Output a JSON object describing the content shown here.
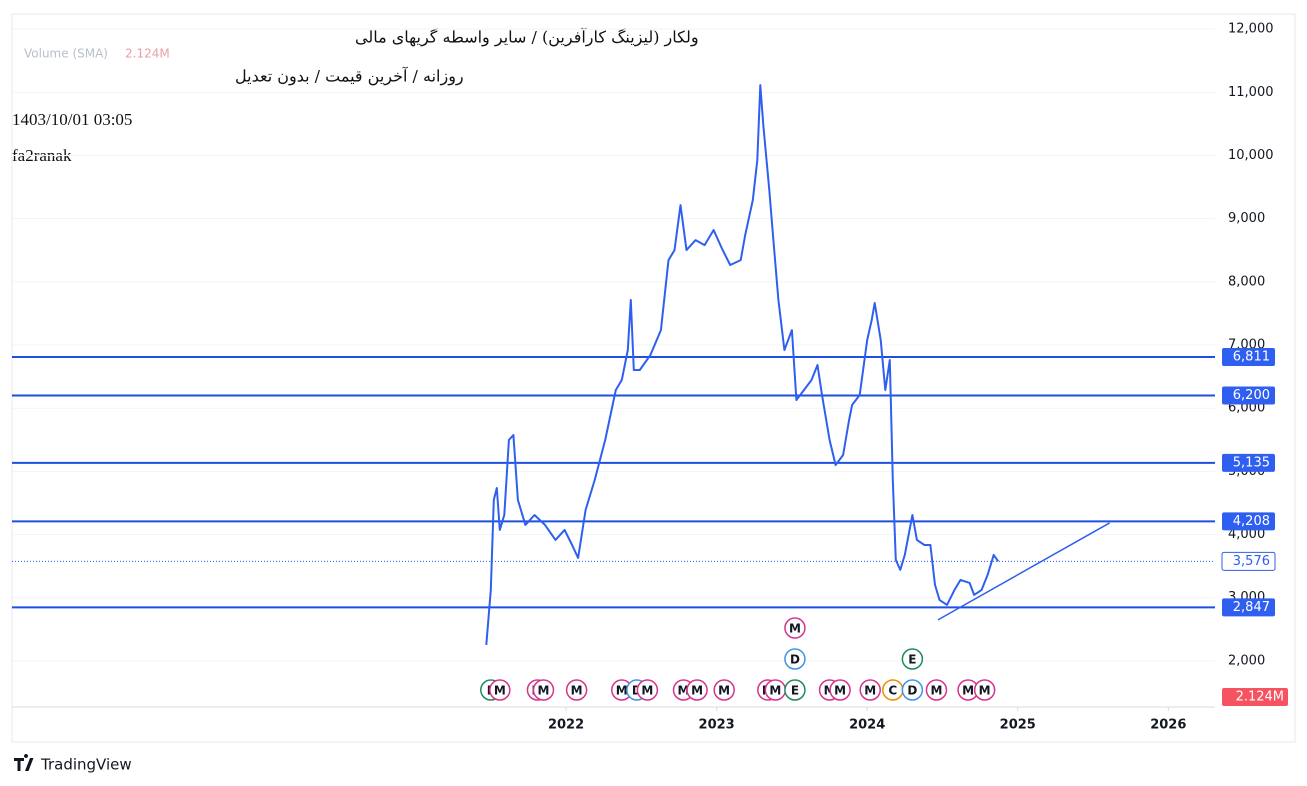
{
  "chart_data": {
    "type": "line",
    "title": "ولکار (لیزینگ کارآفرین) / سایر واسطه گریهای مالی",
    "subtitle": "روزانه / آخرین قیمت / بدون تعدیل",
    "timestamp": "1403/10/01 03:05",
    "author": "fa2ranak",
    "volume_label": "Volume (SMA)",
    "volume_value_label": "2.124M",
    "brand": "TradingView",
    "color": "#2f5ff0",
    "x": [
      2021.47,
      2021.5,
      2021.52,
      2021.54,
      2021.56,
      2021.59,
      2021.62,
      2021.65,
      2021.68,
      2021.73,
      2021.79,
      2021.86,
      2021.93,
      2021.99,
      2022.04,
      2022.08,
      2022.13,
      2022.19,
      2022.26,
      2022.33,
      2022.37,
      2022.41,
      2022.43,
      2022.45,
      2022.49,
      2022.56,
      2022.63,
      2022.68,
      2022.72,
      2022.76,
      2022.8,
      2022.86,
      2022.92,
      2022.98,
      2023.04,
      2023.09,
      2023.16,
      2023.19,
      2023.24,
      2023.27,
      2023.29,
      2023.31,
      2023.35,
      2023.38,
      2023.41,
      2023.45,
      2023.5,
      2023.53,
      2023.58,
      2023.63,
      2023.67,
      2023.7,
      2023.75,
      2023.79,
      2023.84,
      2023.88,
      2023.9,
      2023.95,
      2024.0,
      2024.03,
      2024.05,
      2024.09,
      2024.12,
      2024.15,
      2024.17,
      2024.19,
      2024.22,
      2024.25,
      2024.3,
      2024.33,
      2024.38,
      2024.42,
      2024.45,
      2024.48,
      2024.53,
      2024.58,
      2024.62,
      2024.68,
      2024.71,
      2024.76,
      2024.8,
      2024.84,
      2024.87
    ],
    "values": [
      2253,
      3123,
      4547,
      4737,
      4073,
      4310,
      5497,
      5576,
      4547,
      4152,
      4310,
      4152,
      3915,
      4073,
      3835,
      3630,
      4389,
      4864,
      5497,
      6288,
      6446,
      6921,
      7712,
      6604,
      6604,
      6842,
      7237,
      8345,
      8503,
      9215,
      8503,
      8661,
      8582,
      8820,
      8503,
      8266,
      8345,
      8741,
      9294,
      9927,
      11114,
      10481,
      9453,
      8582,
      7712,
      6921,
      7237,
      6130,
      6288,
      6446,
      6684,
      6209,
      5497,
      5101,
      5259,
      5813,
      6051,
      6209,
      7079,
      7396,
      7665,
      7079,
      6288,
      6763,
      4864,
      3598,
      3440,
      3677,
      4310,
      3915,
      3835,
      3835,
      3203,
      2965,
      2886,
      3123,
      3282,
      3234,
      3044,
      3123,
      3361,
      3677,
      3576
    ],
    "xlim": [
      2018.32,
      2026.31
    ],
    "ylim": [
      1270,
      12240
    ],
    "xticks": [
      2022,
      2023,
      2024,
      2025,
      2026
    ],
    "yticks": [
      {
        "value": 2000,
        "label": "2,000"
      },
      {
        "value": 3000,
        "label": "3,000"
      },
      {
        "value": 4000,
        "label": "4,000"
      },
      {
        "value": 5000,
        "label": "5,000"
      },
      {
        "value": 6000,
        "label": "6,000"
      },
      {
        "value": 7000,
        "label": "7,000"
      },
      {
        "value": 8000,
        "label": "8,000"
      },
      {
        "value": 9000,
        "label": "9,000"
      },
      {
        "value": 10000,
        "label": "10,000"
      },
      {
        "value": 11000,
        "label": "11,000"
      },
      {
        "value": 12000,
        "label": "12,000"
      }
    ],
    "price_lines": [
      {
        "value": 6811,
        "label": "6,811"
      },
      {
        "value": 6200,
        "label": "6,200"
      },
      {
        "value": 5135,
        "label": "5,135"
      },
      {
        "value": 4208,
        "label": "4,208"
      },
      {
        "value": 2847,
        "label": "2,847"
      }
    ],
    "last_price": {
      "value": 3576,
      "label": "3,576"
    },
    "trend_line": {
      "x": [
        2024.47,
        2025.61
      ],
      "values": [
        2649,
        4184
      ]
    },
    "event_colors": {
      "M": "#d6338c",
      "D": "#3d95e8",
      "E": "#1f8a5b",
      "C": "#f08c00"
    },
    "events": [
      {
        "label": "E",
        "x": 2021.5
      },
      {
        "label": "M",
        "x": 2021.56
      },
      {
        "label": "M",
        "x": 2021.81
      },
      {
        "label": "M",
        "x": 2021.85
      },
      {
        "label": "M",
        "x": 2022.07
      },
      {
        "label": "M",
        "x": 2022.37
      },
      {
        "label": "D",
        "x": 2022.47
      },
      {
        "label": "M",
        "x": 2022.54
      },
      {
        "label": "M",
        "x": 2022.78
      },
      {
        "label": "M",
        "x": 2022.87
      },
      {
        "label": "M",
        "x": 2023.05
      },
      {
        "label": "M",
        "x": 2023.34
      },
      {
        "label": "M",
        "x": 2023.39
      },
      {
        "label": "E",
        "x": 2023.52
      },
      {
        "label": "D",
        "x": 2023.52
      },
      {
        "label": "M",
        "x": 2023.52
      },
      {
        "label": "M",
        "x": 2023.75
      },
      {
        "label": "M",
        "x": 2023.82
      },
      {
        "label": "M",
        "x": 2024.02
      },
      {
        "label": "C",
        "x": 2024.17
      },
      {
        "label": "D",
        "x": 2024.3
      },
      {
        "label": "E",
        "x": 2024.3
      },
      {
        "label": "M",
        "x": 2024.46
      },
      {
        "label": "M",
        "x": 2024.67
      },
      {
        "label": "M",
        "x": 2024.78
      }
    ]
  }
}
